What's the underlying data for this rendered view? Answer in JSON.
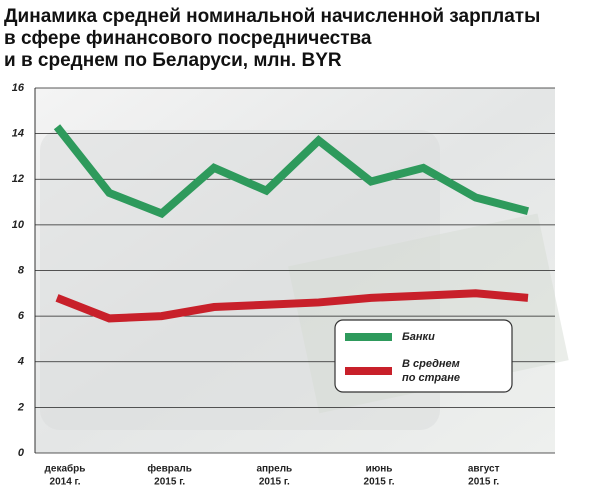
{
  "chart_data": {
    "type": "line",
    "title": [
      "Динамика средней номинальной начисленной зарплаты",
      "в сфере финансового посредничества",
      "и в среднем по Беларуси, млн. BYR"
    ],
    "categories": [
      [
        "декабрь",
        "2014 г."
      ],
      null,
      [
        "февраль",
        "2015 г."
      ],
      null,
      [
        "апрель",
        "2015 г."
      ],
      null,
      [
        "июнь",
        "2015 г."
      ],
      null,
      [
        "август",
        "2015 г."
      ],
      null
    ],
    "series": [
      {
        "name": "Банки",
        "color": "#2e9a5c",
        "values": [
          14.3,
          11.4,
          10.5,
          12.5,
          11.5,
          13.7,
          11.9,
          12.5,
          11.2,
          10.6
        ]
      },
      {
        "name": [
          "В среднем",
          "по стране"
        ],
        "color": "#c8202a",
        "values": [
          6.8,
          5.9,
          6.0,
          6.4,
          6.5,
          6.6,
          6.8,
          6.9,
          7.0,
          6.8
        ]
      }
    ],
    "ylim": [
      0,
      16
    ],
    "yticks": [
      0,
      2,
      4,
      6,
      8,
      10,
      12,
      14,
      16
    ],
    "grid": true
  }
}
